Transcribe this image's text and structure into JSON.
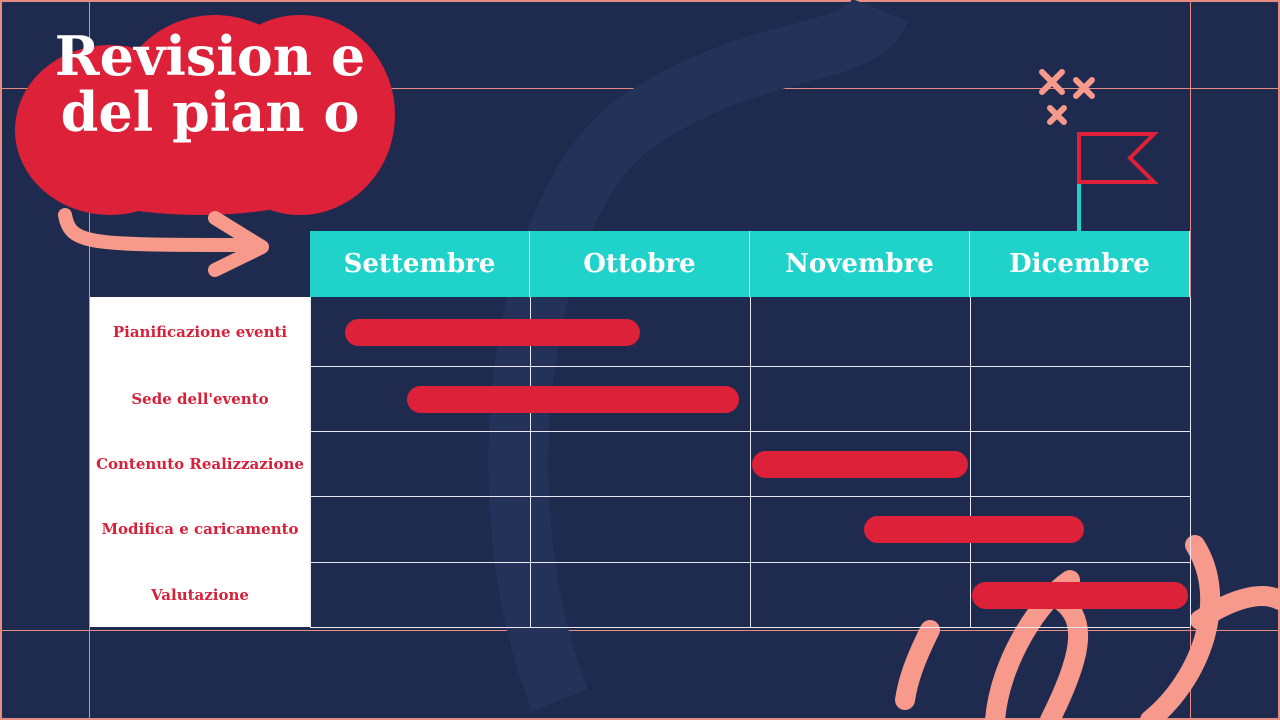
{
  "title": "Revision e del pian o",
  "colors": {
    "background": "#1f2a4f",
    "accent_red": "#dc2139",
    "header_teal": "#1fd3cb",
    "decor_salmon": "#f79a8b"
  },
  "chart_data": {
    "type": "bar",
    "orientation": "horizontal-gantt",
    "categories": [
      "Settembre",
      "Ottobre",
      "Novembre",
      "Dicembre"
    ],
    "tasks": [
      {
        "name": "Pianificazione eventi",
        "start": 0.16,
        "end": 1.5
      },
      {
        "name": "Sede dell'evento",
        "start": 0.44,
        "end": 1.95
      },
      {
        "name": "Contenuto Realizzazione",
        "start": 2.01,
        "end": 2.99
      },
      {
        "name": "Modifica e caricamento",
        "start": 2.52,
        "end": 3.52
      },
      {
        "name": "Valutazione",
        "start": 3.01,
        "end": 3.99
      }
    ],
    "xlim": [
      0,
      4
    ],
    "xunit": "months from start of Settembre"
  }
}
